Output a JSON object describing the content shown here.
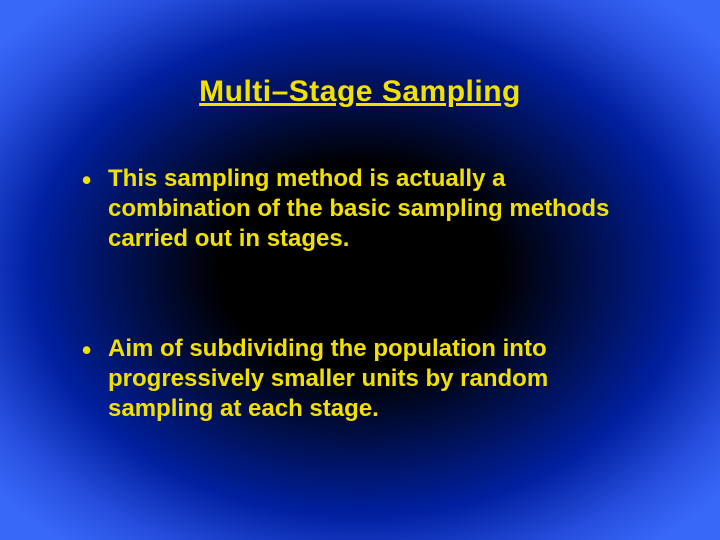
{
  "slide": {
    "title": "Multi–Stage Sampling",
    "title_color": "#f2e000",
    "title_fontsize": 30,
    "bullets": [
      {
        "text": "This sampling method is actually a combination of the basic sampling methods carried out in stages.",
        "color": "#f2e000",
        "fontsize": 24
      },
      {
        "text": "Aim of subdividing the population into progressively smaller units by random sampling at each stage.",
        "color": "#f2e000",
        "fontsize": 24
      }
    ],
    "background": {
      "center_color": "#000000",
      "mid_color": "#0020a0",
      "edge_color": "#3868f8"
    }
  }
}
